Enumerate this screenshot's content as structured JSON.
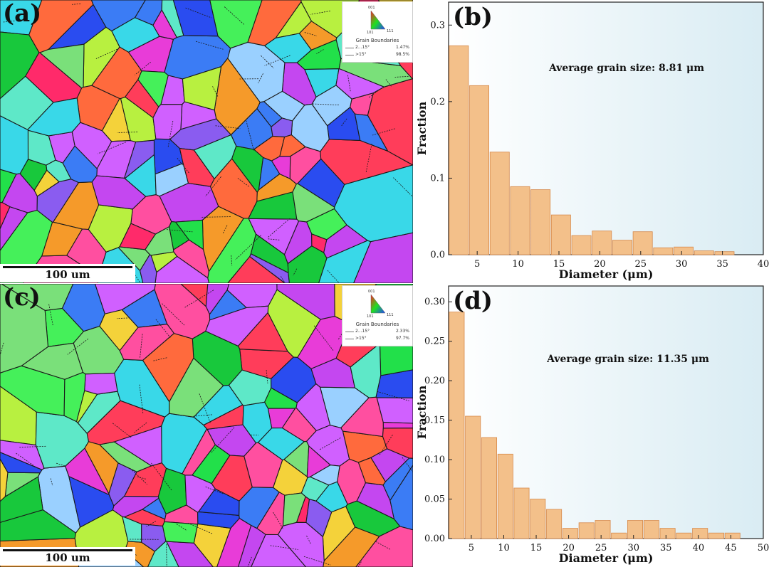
{
  "figure": {
    "panels": {
      "a": "(a)",
      "b": "(b)",
      "c": "(c)",
      "d": "(d)"
    },
    "map_a": {
      "scale_label": "100 um",
      "legend": {
        "ipf_labels": [
          "001",
          "101",
          "111"
        ],
        "title": "Grain Boundaries",
        "rows": [
          {
            "range": "2...15°",
            "value": "1.47%"
          },
          {
            "range": ">15°",
            "value": "98.5%"
          }
        ]
      }
    },
    "map_c": {
      "scale_label": "100 um",
      "legend": {
        "ipf_labels": [
          "001",
          "101",
          "111"
        ],
        "title": "Grain Boundaries",
        "rows": [
          {
            "range": "2...15°",
            "value": "2.33%"
          },
          {
            "range": ">15°",
            "value": "97.7%"
          }
        ]
      }
    },
    "colors": {
      "bar_fill": "#f3c08a",
      "bar_stroke": "#d6894a",
      "plot_bg_left": "#ffffff",
      "plot_bg_right": "#d9ecf3",
      "ebsd_palette": [
        "#22e04a",
        "#45f05a",
        "#18c83c",
        "#ff2a6a",
        "#ff3d5a",
        "#e83cd8",
        "#c447f0",
        "#8a5cf0",
        "#2a4cf0",
        "#3b7cf5",
        "#39d8e8",
        "#5ee8c8",
        "#f59a2a",
        "#f4d23a",
        "#b8f040",
        "#ff4fa0",
        "#9ad0ff",
        "#ff6a3d",
        "#7ae07a",
        "#d060ff"
      ]
    }
  },
  "chart_data": [
    {
      "type": "bar",
      "panel": "(b)",
      "annotation": "Average grain size: 8.81 μm",
      "xlabel": "Diameter (μm)",
      "ylabel": "Fraction",
      "xlim": [
        1.5,
        40
      ],
      "ylim": [
        0,
        0.33
      ],
      "xticks": [
        5,
        10,
        15,
        20,
        25,
        30,
        35,
        40
      ],
      "yticks": [
        0.0,
        0.1,
        0.2,
        0.3
      ],
      "ytick_labels": [
        "0.0",
        "0.1",
        "0.2",
        "0.3"
      ],
      "bin_width": 2.5,
      "x": [
        2.75,
        5.25,
        7.75,
        10.25,
        12.75,
        15.25,
        17.75,
        20.25,
        22.75,
        25.25,
        27.75,
        30.25,
        32.75,
        35.25
      ],
      "values": [
        0.273,
        0.221,
        0.134,
        0.089,
        0.085,
        0.052,
        0.025,
        0.031,
        0.019,
        0.03,
        0.009,
        0.01,
        0.005,
        0.004
      ],
      "grid": false
    },
    {
      "type": "bar",
      "panel": "(d)",
      "annotation": "Average grain size: 11.35 μm",
      "xlabel": "Diameter (μm)",
      "ylabel": "Fraction",
      "xlim": [
        1.5,
        50
      ],
      "ylim": [
        0,
        0.32
      ],
      "xticks": [
        5,
        10,
        15,
        20,
        25,
        30,
        35,
        40,
        45,
        50
      ],
      "yticks": [
        0.0,
        0.05,
        0.1,
        0.15,
        0.2,
        0.25,
        0.3
      ],
      "ytick_labels": [
        "0.00",
        "0.05",
        "0.10",
        "0.15",
        "0.20",
        "0.25",
        "0.30"
      ],
      "bin_width": 2.5,
      "x": [
        2.75,
        5.25,
        7.75,
        10.25,
        12.75,
        15.25,
        17.75,
        20.25,
        22.75,
        25.25,
        27.75,
        30.25,
        32.75,
        35.25,
        37.75,
        40.25,
        42.75,
        45.25
      ],
      "values": [
        0.287,
        0.155,
        0.128,
        0.107,
        0.064,
        0.05,
        0.037,
        0.013,
        0.02,
        0.023,
        0.007,
        0.023,
        0.023,
        0.013,
        0.007,
        0.013,
        0.007,
        0.007
      ],
      "grid": false
    }
  ]
}
